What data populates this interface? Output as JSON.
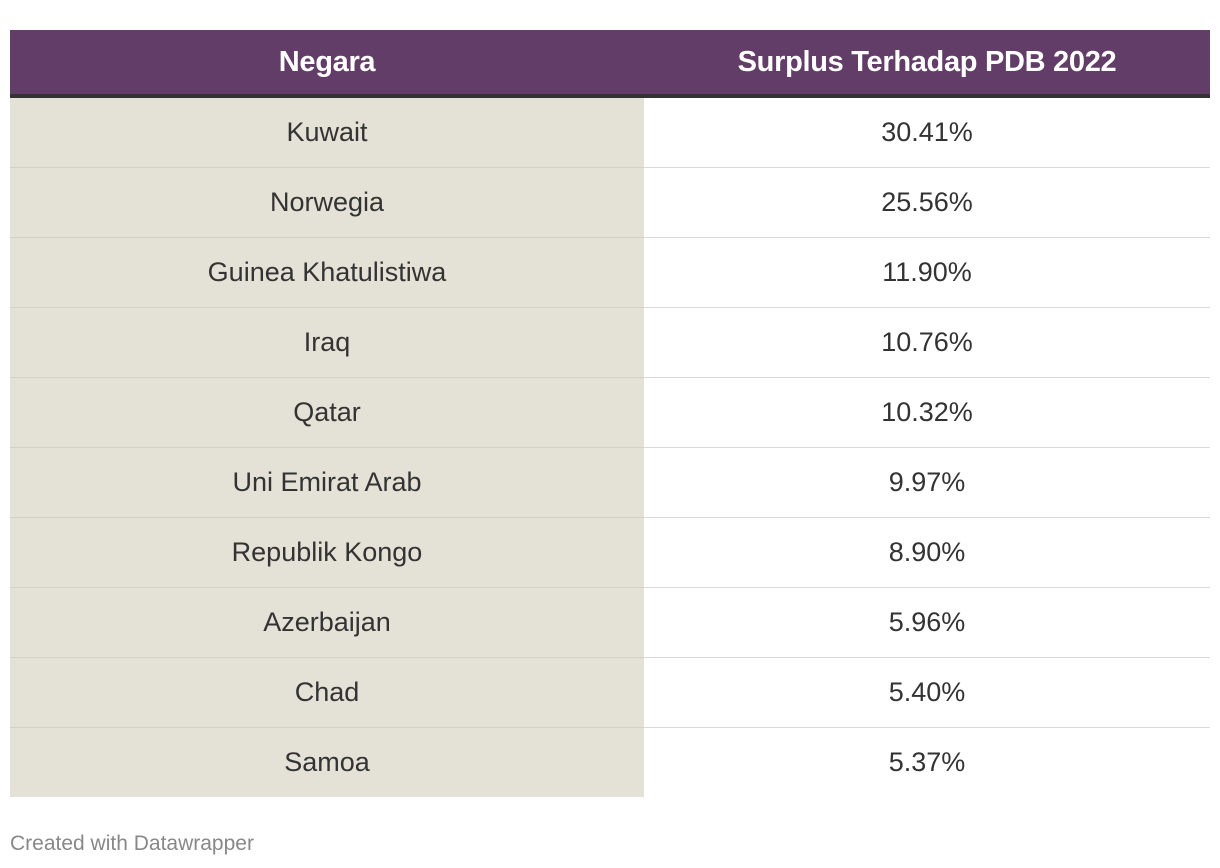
{
  "chart_data": {
    "type": "table",
    "columns": [
      "Negara",
      "Surplus Terhadap PDB 2022"
    ],
    "rows": [
      {
        "country": "Kuwait",
        "value": "30.41%"
      },
      {
        "country": "Norwegia",
        "value": "25.56%"
      },
      {
        "country": "Guinea Khatulistiwa",
        "value": "11.90%"
      },
      {
        "country": "Iraq",
        "value": "10.76%"
      },
      {
        "country": "Qatar",
        "value": "10.32%"
      },
      {
        "country": "Uni Emirat Arab",
        "value": "9.97%"
      },
      {
        "country": "Republik Kongo",
        "value": "8.90%"
      },
      {
        "country": "Azerbaijan",
        "value": "5.96%"
      },
      {
        "country": "Chad",
        "value": "5.40%"
      },
      {
        "country": "Samoa",
        "value": "5.37%"
      }
    ],
    "header_color": "#613d67",
    "highlight_column_color": "#e4e1d6"
  },
  "footer": {
    "credit": "Created with Datawrapper"
  }
}
